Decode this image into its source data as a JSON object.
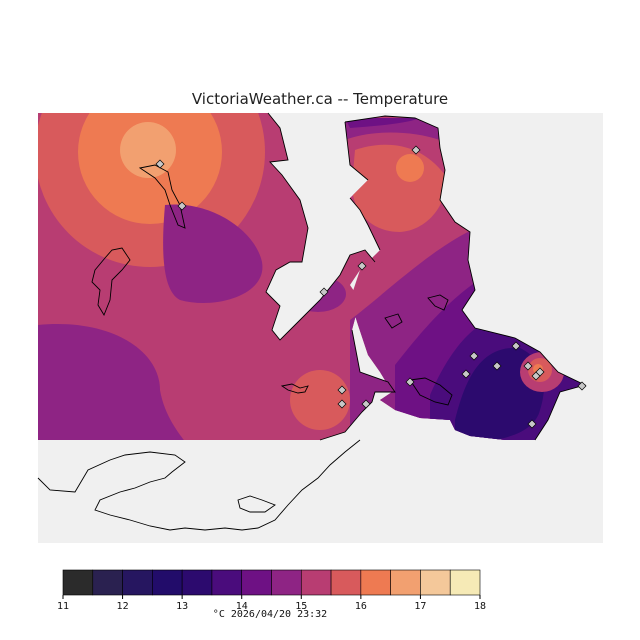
{
  "map": {
    "title": "VictoriaWeather.ca -- Temperature",
    "variable": "Temperature",
    "units": "°C",
    "timestamp": "2026/04/20 23:32",
    "caption": "°C  2026/04/20 23:32",
    "colors": {
      "no_data_background": "#f0f0f0",
      "coastline": "#000000",
      "station_marker_fill": "#c8c8c8"
    }
  },
  "legend": {
    "bins": [
      {
        "min": 11,
        "max": 11.5,
        "color": "#2b2b2b"
      },
      {
        "min": 11.5,
        "max": 12,
        "color": "#2a2150"
      },
      {
        "min": 12,
        "max": 12.5,
        "color": "#261660"
      },
      {
        "min": 12.5,
        "max": 13,
        "color": "#220c6a"
      },
      {
        "min": 13,
        "max": 13.5,
        "color": "#2c0a6e"
      },
      {
        "min": 13.5,
        "max": 14,
        "color": "#4a0c7c"
      },
      {
        "min": 14,
        "max": 14.5,
        "color": "#6e1184"
      },
      {
        "min": 14.5,
        "max": 15,
        "color": "#8e2484"
      },
      {
        "min": 15,
        "max": 15.5,
        "color": "#b83d72"
      },
      {
        "min": 15.5,
        "max": 16,
        "color": "#d85a5c"
      },
      {
        "min": 16,
        "max": 16.5,
        "color": "#ee7a52"
      },
      {
        "min": 16.5,
        "max": 17,
        "color": "#f2a070"
      },
      {
        "min": 17,
        "max": 17.5,
        "color": "#f4c89a"
      },
      {
        "min": 17.5,
        "max": 18,
        "color": "#f6eab6"
      }
    ],
    "tick_labels": [
      "11",
      "12",
      "13",
      "14",
      "15",
      "16",
      "17",
      "18"
    ]
  },
  "stations": [
    {
      "id": 1
    },
    {
      "id": 2
    },
    {
      "id": 3
    },
    {
      "id": 4
    },
    {
      "id": 5
    },
    {
      "id": 6
    },
    {
      "id": 7
    },
    {
      "id": 8
    },
    {
      "id": 9
    },
    {
      "id": 10
    },
    {
      "id": 11
    },
    {
      "id": 12
    },
    {
      "id": 13
    },
    {
      "id": 14
    },
    {
      "id": 15
    },
    {
      "id": 16
    },
    {
      "id": 17
    },
    {
      "id": 18
    }
  ]
}
